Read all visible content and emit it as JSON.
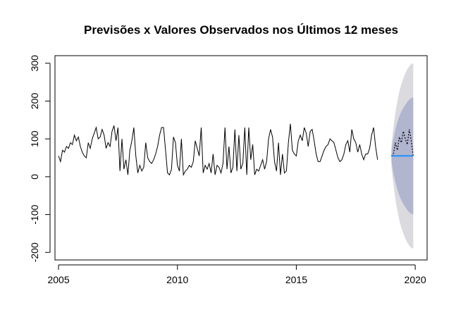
{
  "chart_data": {
    "type": "line",
    "title": "Previsões x Valores Observados nos Últimos 12 meses",
    "xlabel": "",
    "ylabel": "",
    "xlim": [
      2004.85,
      2020.5
    ],
    "ylim": [
      -220,
      320
    ],
    "x_ticks": [
      2005,
      2010,
      2015,
      2020
    ],
    "x_tick_labels": [
      "2005",
      "2010",
      "2015",
      "2020"
    ],
    "y_ticks": [
      -200,
      -100,
      0,
      100,
      200,
      300
    ],
    "y_tick_labels": [
      "-200",
      "-100",
      "0",
      "100",
      "200",
      "300"
    ],
    "grid": false,
    "legend": "none",
    "colors": {
      "observed": "#000000",
      "forecast_mean": "#1e90ff",
      "band80": "#b1b5ce",
      "band95": "#dbdbdf"
    },
    "observed": {
      "start": 2005.0,
      "frequency": 12,
      "values": [
        55,
        40,
        70,
        65,
        80,
        75,
        90,
        85,
        110,
        95,
        105,
        80,
        65,
        55,
        50,
        90,
        75,
        100,
        115,
        130,
        100,
        105,
        125,
        110,
        75,
        90,
        80,
        120,
        135,
        95,
        130,
        15,
        100,
        20,
        45,
        5,
        70,
        95,
        130,
        55,
        10,
        30,
        15,
        25,
        90,
        50,
        40,
        35,
        45,
        60,
        80,
        110,
        130,
        130,
        70,
        10,
        5,
        20,
        105,
        90,
        30,
        15,
        100,
        5,
        15,
        20,
        30,
        25,
        40,
        95,
        75,
        55,
        130,
        10,
        30,
        20,
        35,
        10,
        60,
        5,
        30,
        25,
        10,
        35,
        130,
        20,
        80,
        10,
        25,
        125,
        15,
        110,
        20,
        35,
        130,
        5,
        130,
        45,
        85,
        5,
        20,
        15,
        30,
        45,
        20,
        40,
        100,
        125,
        105,
        40,
        15,
        90,
        5,
        60,
        10,
        15,
        90,
        140,
        70,
        60,
        55,
        95,
        110,
        95,
        130,
        115,
        80,
        120,
        125,
        95,
        60,
        40,
        40,
        55,
        70,
        80,
        85,
        100,
        95,
        90,
        70,
        50,
        40,
        45,
        60,
        85,
        95,
        65,
        125,
        100,
        90,
        65,
        85,
        60,
        45,
        60,
        60,
        75,
        110,
        130,
        80,
        45
      ]
    },
    "observed_last12": {
      "start": 2019.0,
      "frequency": 12,
      "values": [
        55,
        60,
        90,
        70,
        105,
        90,
        120,
        100,
        85,
        125,
        95,
        55
      ]
    },
    "forecast": {
      "start": 2019.0,
      "frequency": 12,
      "mean": [
        55,
        55,
        55,
        55,
        55,
        55,
        55,
        55,
        55,
        55,
        55,
        55
      ],
      "lo80": [
        40,
        10,
        -15,
        -35,
        -50,
        -62,
        -72,
        -80,
        -88,
        -94,
        -98,
        -100
      ],
      "hi80": [
        70,
        100,
        125,
        145,
        160,
        172,
        182,
        190,
        198,
        204,
        208,
        210
      ],
      "lo95": [
        25,
        -20,
        -60,
        -90,
        -115,
        -135,
        -150,
        -163,
        -174,
        -182,
        -188,
        -190
      ],
      "hi95": [
        85,
        130,
        170,
        200,
        225,
        245,
        260,
        273,
        284,
        292,
        298,
        300
      ]
    }
  }
}
